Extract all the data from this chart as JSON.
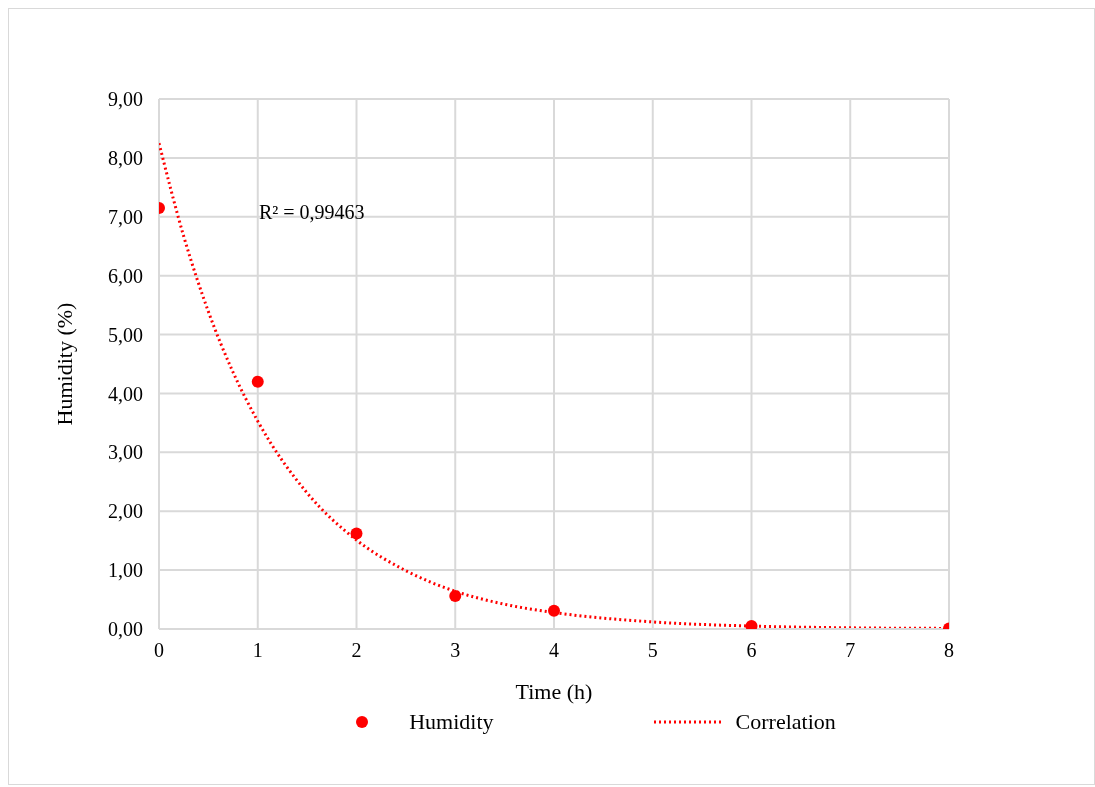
{
  "chart_data": {
    "type": "scatter",
    "xlabel": "Time (h)",
    "ylabel": "Humidity  (%)",
    "annotations": [
      "R² = 0,99463"
    ],
    "series": [
      {
        "name": "Humidity",
        "type": "scatter",
        "color": "#ff0000",
        "marker": "circle",
        "x": [
          0,
          1,
          2,
          3,
          4,
          6,
          8
        ],
        "values": [
          7.15,
          4.2,
          1.62,
          0.56,
          0.31,
          0.05,
          0.01
        ]
      },
      {
        "name": "Correlation",
        "type": "line",
        "color": "#ff0000",
        "marker": "none",
        "line_style": "dotted",
        "x": [
          0,
          0.25,
          0.5,
          0.75,
          1,
          1.5,
          2,
          2.5,
          3,
          3.5,
          4,
          5,
          6,
          7,
          8
        ],
        "values": [
          8.25,
          6.67,
          5.39,
          4.36,
          3.53,
          2.31,
          1.51,
          0.99,
          0.64,
          0.42,
          0.28,
          0.12,
          0.05,
          0.02,
          0.01
        ]
      }
    ],
    "xlim": [
      0,
      8
    ],
    "xticks": [
      0,
      1,
      2,
      3,
      4,
      5,
      6,
      7,
      8
    ],
    "ylim": [
      0,
      9
    ],
    "yticks": [
      {
        "value": 0,
        "label": "0,00"
      },
      {
        "value": 1,
        "label": "1,00"
      },
      {
        "value": 2,
        "label": "2,00"
      },
      {
        "value": 3,
        "label": "3,00"
      },
      {
        "value": 4,
        "label": "4,00"
      },
      {
        "value": 5,
        "label": "5,00"
      },
      {
        "value": 6,
        "label": "6,00"
      },
      {
        "value": 7,
        "label": "7,00"
      },
      {
        "value": 8,
        "label": "8,00"
      },
      {
        "value": 9,
        "label": "9,00"
      }
    ],
    "grid": true,
    "legend": "bottom"
  }
}
